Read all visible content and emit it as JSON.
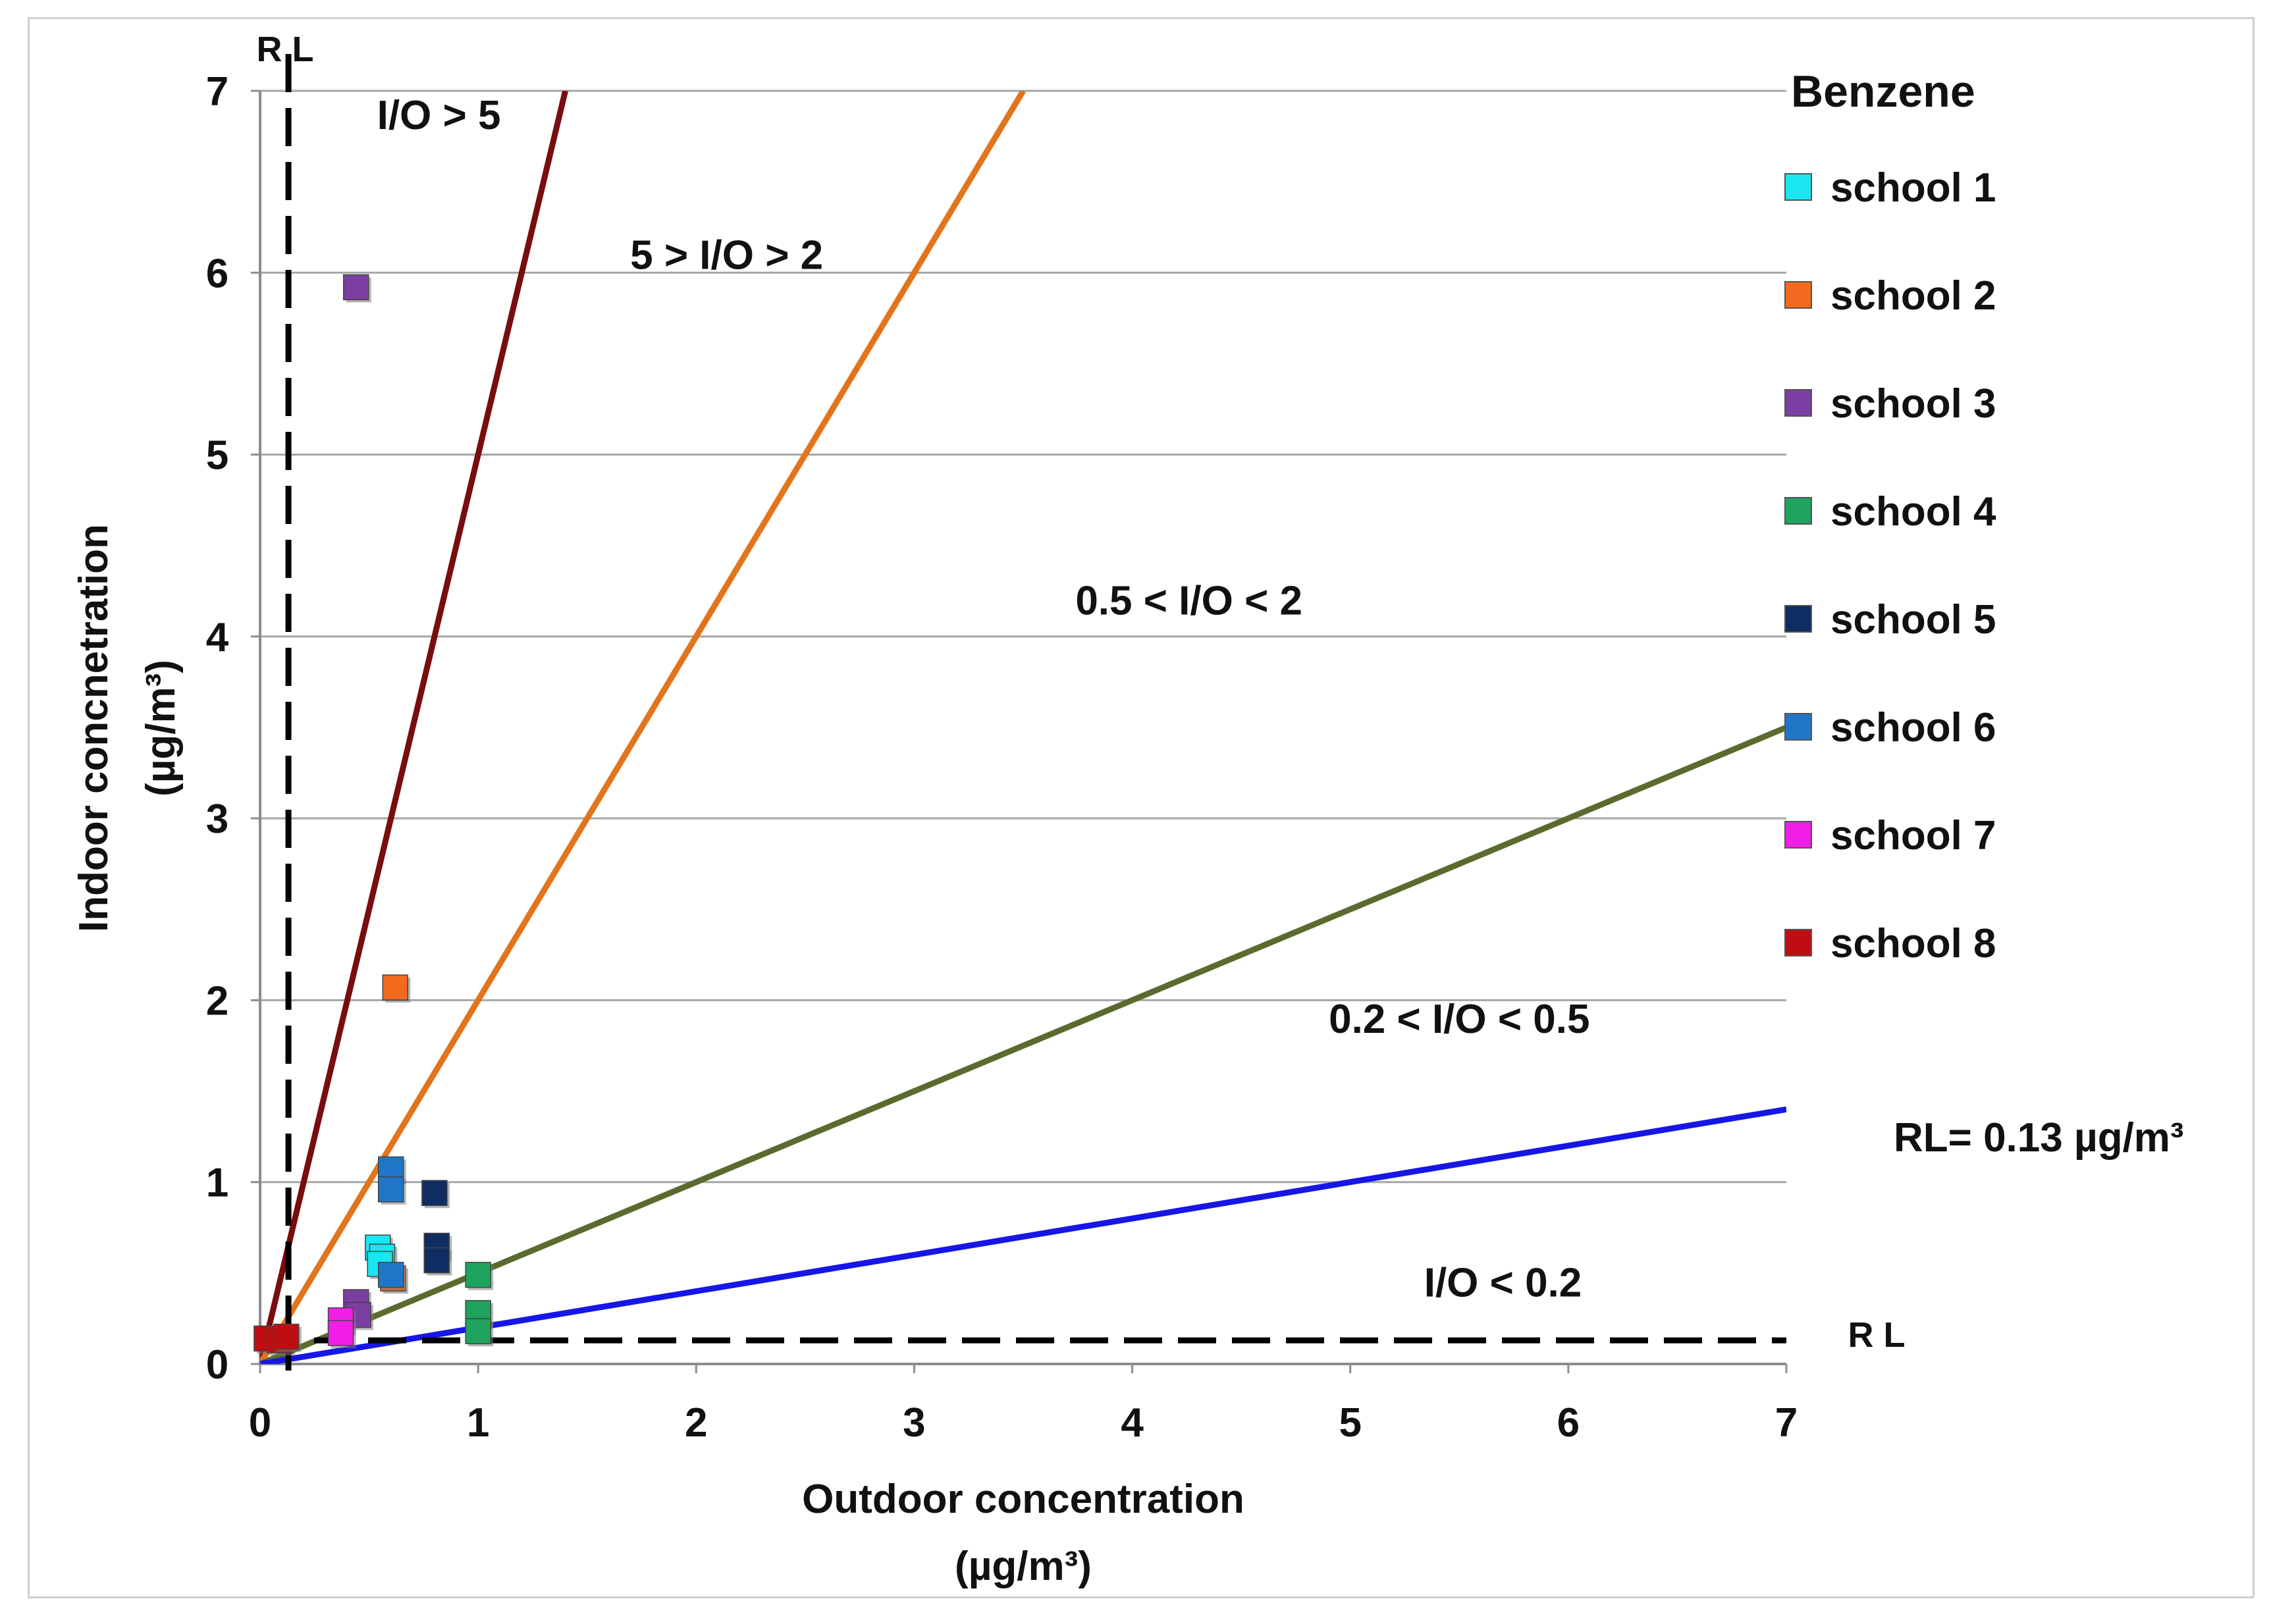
{
  "chart_data": {
    "type": "scatter",
    "title": "Benzene",
    "xlabel": "Outdoor concentration",
    "xlabel_unit": "(µg/m³)",
    "ylabel": "Indoor concnetration",
    "ylabel_unit": "(µg/m³)",
    "xlim": [
      0,
      7
    ],
    "ylim": [
      0,
      7
    ],
    "x_ticks": [
      0,
      1,
      2,
      3,
      4,
      5,
      6,
      7
    ],
    "y_ticks": [
      0,
      1,
      2,
      3,
      4,
      5,
      6,
      7
    ],
    "grid": "horizontal",
    "legend_position": "right",
    "reference_lines": [
      {
        "name": "io-5",
        "slope": 5,
        "color": "#7a0c10"
      },
      {
        "name": "io-2",
        "slope": 2,
        "color": "#e2741c"
      },
      {
        "name": "io-0.5",
        "slope": 0.5,
        "color": "#5a6b2e"
      },
      {
        "name": "io-0.2",
        "slope": 0.2,
        "color": "#1616e6"
      }
    ],
    "rl_value": 0.13,
    "rl_label": "RL= 0.13 µg/m³",
    "rl_marker": "R L",
    "region_labels": [
      {
        "text": "I/O > 5",
        "x": 0.82,
        "y": 6.87
      },
      {
        "text": "5 > I/O > 2",
        "x": 2.14,
        "y": 6.1
      },
      {
        "text": "0.5 < I/O < 2",
        "x": 4.26,
        "y": 4.2
      },
      {
        "text": "0.2 < I/O < 0.5",
        "x": 5.5,
        "y": 1.9
      },
      {
        "text": "I/O < 0.2",
        "x": 5.7,
        "y": 0.45
      }
    ],
    "series": [
      {
        "name": "school 1",
        "color": "#19e6f0",
        "points": [
          [
            0.54,
            0.64
          ],
          [
            0.56,
            0.59
          ],
          [
            0.55,
            0.55
          ]
        ]
      },
      {
        "name": "school 2",
        "color": "#f26a1d",
        "points": [
          [
            0.62,
            2.07
          ],
          [
            0.61,
            0.47
          ]
        ]
      },
      {
        "name": "school 3",
        "color": "#7a3fa0",
        "points": [
          [
            0.44,
            5.92
          ],
          [
            0.44,
            0.34
          ],
          [
            0.45,
            0.27
          ]
        ]
      },
      {
        "name": "school 4",
        "color": "#1fa35e",
        "points": [
          [
            1.0,
            0.49
          ],
          [
            1.0,
            0.28
          ],
          [
            1.0,
            0.18
          ]
        ]
      },
      {
        "name": "school 5",
        "color": "#0f2d63",
        "points": [
          [
            0.8,
            0.94
          ],
          [
            0.81,
            0.65
          ],
          [
            0.81,
            0.57
          ]
        ]
      },
      {
        "name": "school 6",
        "color": "#1f76c8",
        "points": [
          [
            0.6,
            1.07
          ],
          [
            0.6,
            0.96
          ],
          [
            0.6,
            0.49
          ]
        ]
      },
      {
        "name": "school 7",
        "color": "#f01ee6",
        "points": [
          [
            0.37,
            0.24
          ],
          [
            0.37,
            0.17
          ]
        ]
      },
      {
        "name": "school 8",
        "color": "#c00d12",
        "points": [
          [
            0.03,
            0.14
          ],
          [
            0.09,
            0.13
          ],
          [
            0.12,
            0.15
          ]
        ]
      }
    ]
  }
}
